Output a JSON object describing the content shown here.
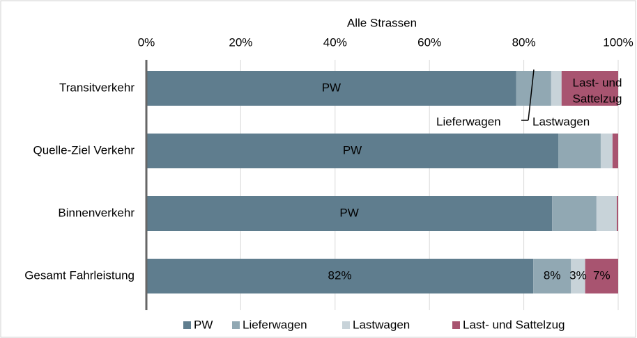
{
  "chart_data": {
    "type": "stacked_barh",
    "title": "Alle Strassen",
    "categories": [
      "Transitverkehr",
      "Quelle-Ziel Verkehr",
      "Binnenverkehr",
      "Gesamt Fahrleistung"
    ],
    "series": [
      {
        "name": "PW",
        "color": "#5f7d8e",
        "values": [
          78.4,
          87.3,
          86,
          82
        ],
        "value_labels": [
          null,
          null,
          null,
          "82%"
        ]
      },
      {
        "name": "Lieferwagen",
        "color": "#91a8b3",
        "values": [
          7.4,
          9,
          9.4,
          8
        ],
        "value_labels": [
          null,
          null,
          null,
          "8%"
        ]
      },
      {
        "name": "Lastwagen",
        "color": "#c8d3d9",
        "values": [
          2.2,
          2.5,
          4.3,
          3
        ],
        "value_labels": [
          null,
          null,
          null,
          "3%"
        ]
      },
      {
        "name": "Last- und Sattelzug",
        "color": "#a85470",
        "values": [
          12,
          1.2,
          0.3,
          7
        ],
        "value_labels": [
          null,
          null,
          null,
          "7%"
        ]
      }
    ],
    "annotations": [
      "Last- und",
      "Sattelzug"
    ],
    "xlim": [
      0,
      100
    ],
    "xticks": [
      {
        "value": 0,
        "label": "0%"
      },
      {
        "value": 20,
        "label": "20%"
      },
      {
        "value": 40,
        "label": "40%"
      },
      {
        "value": 60,
        "label": "60%"
      },
      {
        "value": 80,
        "label": "80%"
      },
      {
        "value": 100,
        "label": "100%"
      }
    ],
    "grid": true,
    "legend": "bottom"
  }
}
